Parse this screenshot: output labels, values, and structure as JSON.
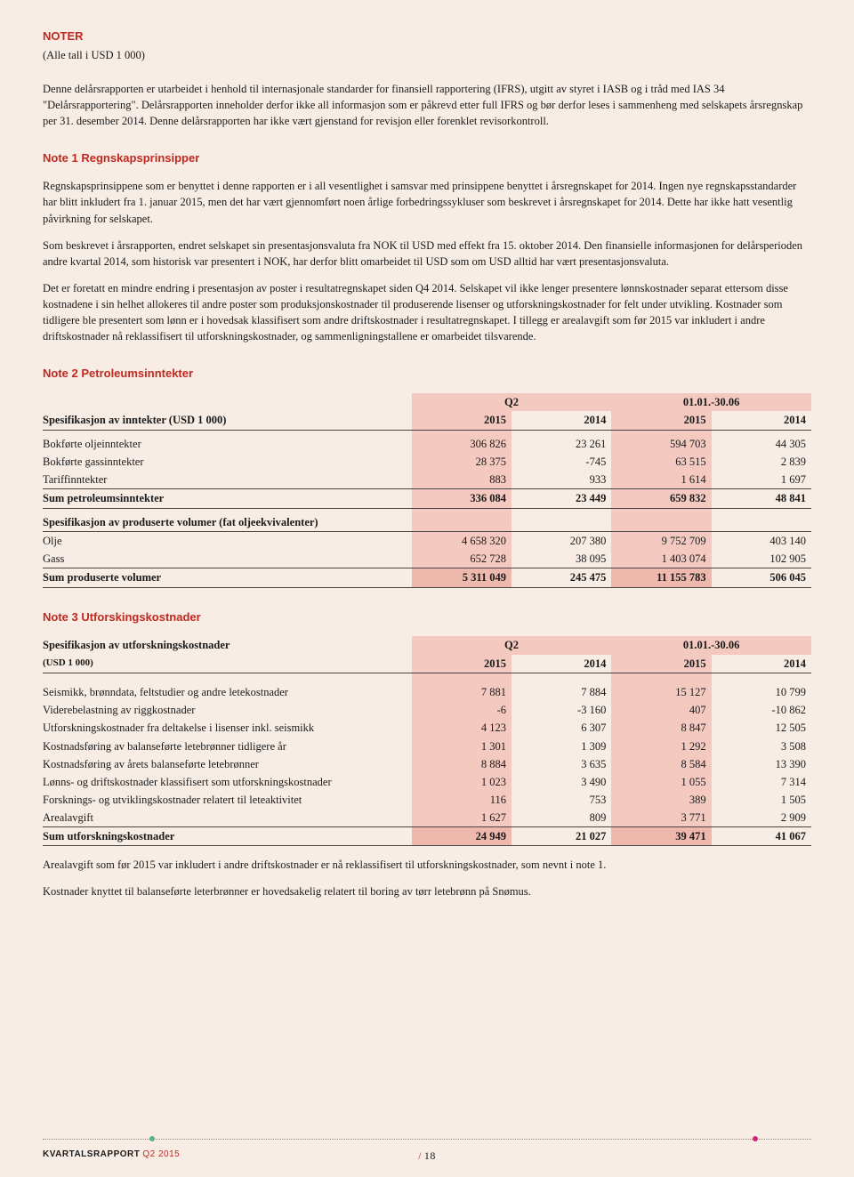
{
  "header": {
    "title": "NOTER",
    "subtitle": "(Alle tall i USD 1 000)"
  },
  "intro": {
    "p1": "Denne delårsrapporten er utarbeidet i henhold til internasjonale standarder for finansiell rapportering (IFRS), utgitt av styret i IASB og i tråd med IAS 34 \"Delårsrapportering\". Delårsrapporten inneholder derfor ikke all informasjon som er påkrevd etter full IFRS og bør derfor leses i sammenheng med selskapets årsregnskap per 31. desember 2014. Denne delårsrapporten har ikke vært gjenstand for revisjon eller forenklet revisorkontroll."
  },
  "note1": {
    "title": "Note 1 Regnskapsprinsipper",
    "p1": "Regnskapsprinsippene som er benyttet i denne rapporten er i all vesentlighet i samsvar med prinsippene benyttet i årsregnskapet for 2014. Ingen nye regnskapsstandarder har blitt inkludert fra 1. januar 2015, men det har vært gjennomført noen årlige forbedringssykluser som beskrevet i årsregnskapet for 2014. Dette har ikke hatt vesentlig påvirkning for selskapet.",
    "p2": "Som beskrevet i årsrapporten, endret selskapet sin presentasjonsvaluta fra NOK til USD med effekt fra 15. oktober 2014. Den finansielle informasjonen for delårsperioden andre kvartal 2014, som historisk var presentert i NOK, har derfor blitt omarbeidet til USD som om USD alltid har vært presentasjonsvaluta.",
    "p3": "Det er foretatt en mindre endring i presentasjon av poster i resultatregnskapet siden Q4 2014. Selskapet vil ikke lenger presentere lønnskostnader separat ettersom disse kostnadene i sin helhet allokeres til andre poster som produksjonskostnader til produserende lisenser og utforskningskostnader for felt under utvikling. Kostnader som tidligere ble presentert som lønn er i hovedsak klassifisert som andre driftskostnader i resultatregnskapet. I tillegg er arealavgift som før 2015 var inkludert i andre driftskostnader nå reklassifisert til utforskningskostnader, og sammenligningstallene er omarbeidet tilsvarende."
  },
  "note2": {
    "title": "Note 2 Petroleumsinntekter",
    "group_q2": "Q2",
    "group_ytd": "01.01.-30.06",
    "header_label": "Spesifikasjon av inntekter (USD 1 000)",
    "y2015": "2015",
    "y2014": "2014",
    "rows": [
      {
        "label": "Bokførte oljeinntekter",
        "q2_2015": "306 826",
        "q2_2014": "23 261",
        "ytd_2015": "594 703",
        "ytd_2014": "44 305"
      },
      {
        "label": "Bokførte gassinntekter",
        "q2_2015": "28 375",
        "q2_2014": "-745",
        "ytd_2015": "63 515",
        "ytd_2014": "2 839"
      },
      {
        "label": "Tariffinntekter",
        "q2_2015": "883",
        "q2_2014": "933",
        "ytd_2015": "1 614",
        "ytd_2014": "1 697"
      }
    ],
    "sum": {
      "label": "Sum petroleumsinntekter",
      "q2_2015": "336 084",
      "q2_2014": "23 449",
      "ytd_2015": "659 832",
      "ytd_2014": "48 841"
    },
    "vol_header": "Spesifikasjon av produserte volumer (fat oljeekvivalenter)",
    "vol_rows": [
      {
        "label": "Olje",
        "q2_2015": "4 658 320",
        "q2_2014": "207 380",
        "ytd_2015": "9 752 709",
        "ytd_2014": "403 140"
      },
      {
        "label": "Gass",
        "q2_2015": "652 728",
        "q2_2014": "38 095",
        "ytd_2015": "1 403 074",
        "ytd_2014": "102 905"
      }
    ],
    "vol_sum": {
      "label": "Sum produserte volumer",
      "q2_2015": "5 311 049",
      "q2_2014": "245 475",
      "ytd_2015": "11 155 783",
      "ytd_2014": "506 045"
    }
  },
  "note3": {
    "title": "Note 3 Utforskingskostnader",
    "header_label": "Spesifikasjon av utforskningskostnader",
    "header_sub": "(USD 1 000)",
    "group_q2": "Q2",
    "group_ytd": "01.01.-30.06",
    "y2015": "2015",
    "y2014": "2014",
    "rows": [
      {
        "label": "Seismikk, brønndata, feltstudier og andre letekostnader",
        "q2_2015": "7 881",
        "q2_2014": "7 884",
        "ytd_2015": "15 127",
        "ytd_2014": "10 799"
      },
      {
        "label": "Viderebelastning av riggkostnader",
        "q2_2015": "-6",
        "q2_2014": "-3 160",
        "ytd_2015": "407",
        "ytd_2014": "-10 862"
      },
      {
        "label": "Utforskningskostnader fra deltakelse i lisenser inkl. seismikk",
        "q2_2015": "4 123",
        "q2_2014": "6 307",
        "ytd_2015": "8 847",
        "ytd_2014": "12 505"
      },
      {
        "label": "Kostnadsføring av balanseførte letebrønner tidligere år",
        "q2_2015": "1 301",
        "q2_2014": "1 309",
        "ytd_2015": "1 292",
        "ytd_2014": "3 508"
      },
      {
        "label": "Kostnadsføring av årets balanseførte letebrønner",
        "q2_2015": "8 884",
        "q2_2014": "3 635",
        "ytd_2015": "8 584",
        "ytd_2014": "13 390"
      },
      {
        "label": "Lønns- og driftskostnader klassifisert som utforskningskostnader",
        "q2_2015": "1 023",
        "q2_2014": "3 490",
        "ytd_2015": "1 055",
        "ytd_2014": "7 314"
      },
      {
        "label": "Forsknings- og utviklingskostnader relatert til leteaktivitet",
        "q2_2015": "116",
        "q2_2014": "753",
        "ytd_2015": "389",
        "ytd_2014": "1 505"
      },
      {
        "label": "Arealavgift",
        "q2_2015": "1 627",
        "q2_2014": "809",
        "ytd_2015": "3 771",
        "ytd_2014": "2 909"
      }
    ],
    "sum": {
      "label": "Sum utforskningskostnader",
      "q2_2015": "24 949",
      "q2_2014": "21 027",
      "ytd_2015": "39 471",
      "ytd_2014": "41 067"
    },
    "p1": "Arealavgift som før 2015 var inkludert i andre driftskostnader er nå reklassifisert til utforskningskostnader, som nevnt i note 1.",
    "p2": "Kostnader knyttet til balanseførte leterbrønner er hovedsakelig relatert til boring av tørr letebrønn på Snømus."
  },
  "footer": {
    "brand": "KVARTALSRAPPORT",
    "period": "Q2 2015",
    "page": "18"
  }
}
